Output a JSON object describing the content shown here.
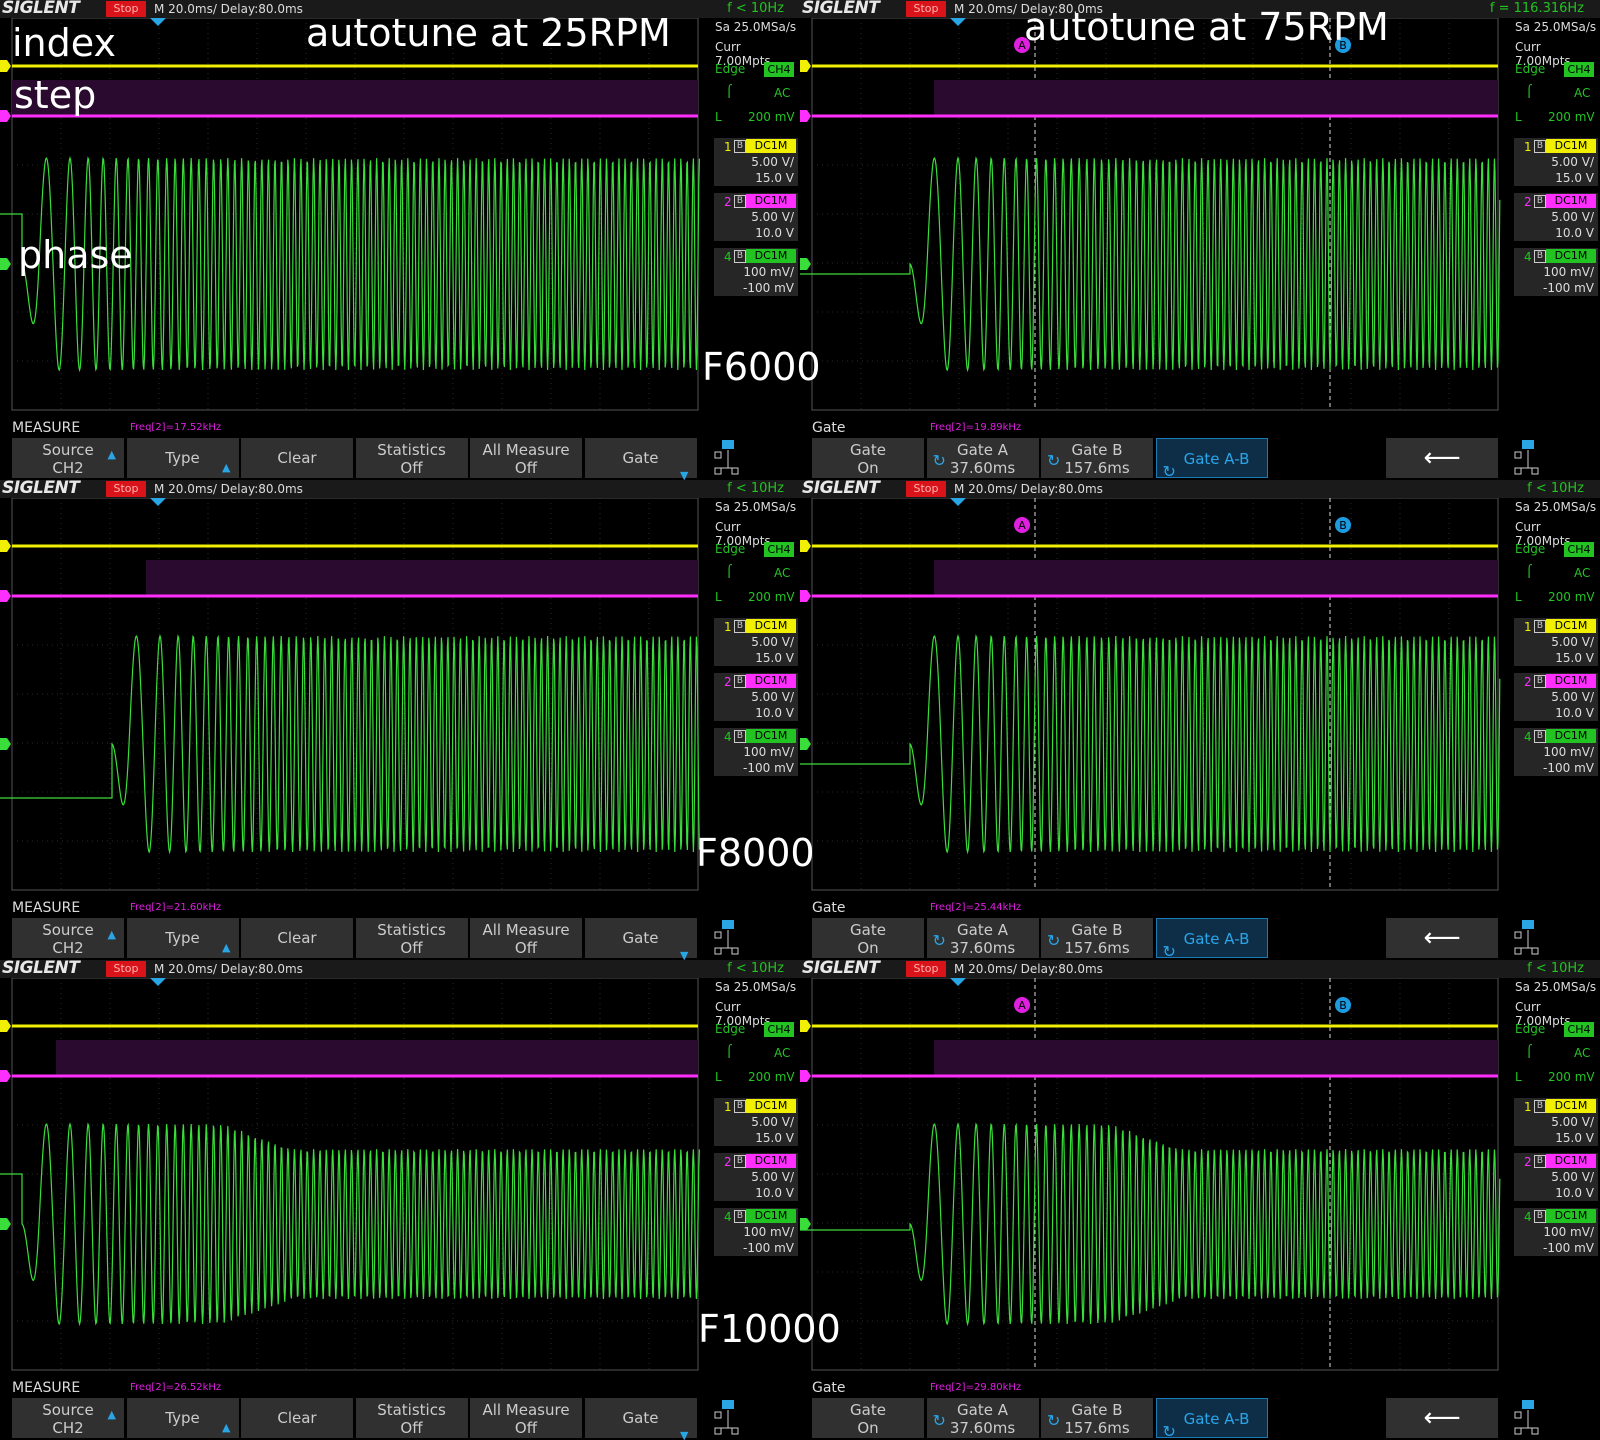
{
  "common": {
    "brand": "SIGLENT",
    "run_state": "Stop",
    "timebase": "M 20.0ms/ Delay:80.0ms",
    "sample_rate": "Sa 25.0MSa/s",
    "memory": "Curr 7.00Mpts",
    "trigger_type": "Edge",
    "trigger_source": "CH4",
    "coupling": "AC",
    "level_prefix": "L",
    "level": "200 mV",
    "ch1": {
      "num": "1",
      "cpl": "DC1M",
      "scale": "5.00 V/",
      "offset": "15.0 V"
    },
    "ch2": {
      "num": "2",
      "cpl": "DC1M",
      "scale": "5.00 V/",
      "offset": "10.0 V"
    },
    "ch4": {
      "num": "4",
      "cpl": "DC1M",
      "scale": "100 mV/",
      "offset": "-100 mV"
    },
    "bw_label": "B",
    "cursor_a": "A",
    "cursor_b": "B",
    "colors": {
      "ch1": "#f0f000",
      "ch2": "#ff30ff",
      "ch4": "#3ade3a",
      "accent": "#2aa5e6"
    }
  },
  "measure_menu": {
    "title": "MEASURE",
    "source": {
      "l1": "Source",
      "l2": "CH2"
    },
    "type": "Type",
    "clear": "Clear",
    "statistics": {
      "l1": "Statistics",
      "l2": "Off"
    },
    "all_measure": {
      "l1": "All Measure",
      "l2": "Off"
    },
    "gate": "Gate"
  },
  "gate_menu": {
    "title": "Gate",
    "gate": {
      "l1": "Gate",
      "l2": "On"
    },
    "gate_a": {
      "l1": "Gate A",
      "l2": "37.60ms"
    },
    "gate_b": {
      "l1": "Gate B",
      "l2": "157.6ms"
    },
    "gate_ab": "Gate A-B"
  },
  "panels": [
    {
      "trigger_freq": "f < 10Hz",
      "freq": "Freq[2]=17.52kHz"
    },
    {
      "trigger_freq": "f = 116.316Hz",
      "freq": "Freq[2]=19.89kHz"
    },
    {
      "trigger_freq": "f < 10Hz",
      "freq": "Freq[2]=21.60kHz"
    },
    {
      "trigger_freq": "f < 10Hz",
      "freq": "Freq[2]=25.44kHz"
    },
    {
      "trigger_freq": "f < 10Hz",
      "freq": "Freq[2]=26.52kHz"
    },
    {
      "trigger_freq": "f < 10Hz",
      "freq": "Freq[2]=29.80kHz"
    }
  ],
  "annotations": {
    "index": "index",
    "step": "step",
    "phase": "phase",
    "left_title": "autotune at 25RPM",
    "right_title": "autotune at 75RPM",
    "row1": "F6000",
    "row2": "F8000",
    "row3": "F10000"
  }
}
